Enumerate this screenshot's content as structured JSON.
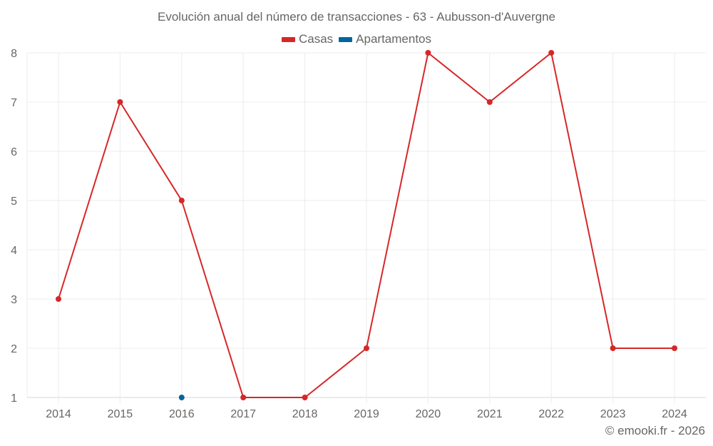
{
  "chart_data": {
    "type": "line",
    "title": "Evolución anual del número de transacciones - 63 - Aubusson-d'Auvergne",
    "xlabel": "",
    "ylabel": "",
    "categories": [
      "2014",
      "2015",
      "2016",
      "2017",
      "2018",
      "2019",
      "2020",
      "2021",
      "2022",
      "2023",
      "2024"
    ],
    "series": [
      {
        "name": "Casas",
        "color": "#d62728",
        "values": [
          3,
          7,
          5,
          1,
          1,
          2,
          8,
          7,
          8,
          2,
          2
        ]
      },
      {
        "name": "Apartamentos",
        "color": "#0066a0",
        "values": [
          null,
          null,
          1,
          null,
          null,
          null,
          null,
          null,
          null,
          null,
          null
        ]
      }
    ],
    "ylim": [
      1,
      8
    ],
    "yticks": [
      1,
      2,
      3,
      4,
      5,
      6,
      7,
      8
    ],
    "grid": true,
    "legend_position": "top"
  },
  "legend": {
    "items": [
      {
        "label": "Casas",
        "color": "#d62728"
      },
      {
        "label": "Apartamentos",
        "color": "#0066a0"
      }
    ]
  },
  "footer": {
    "copyright": "© emooki.fr - 2026"
  }
}
